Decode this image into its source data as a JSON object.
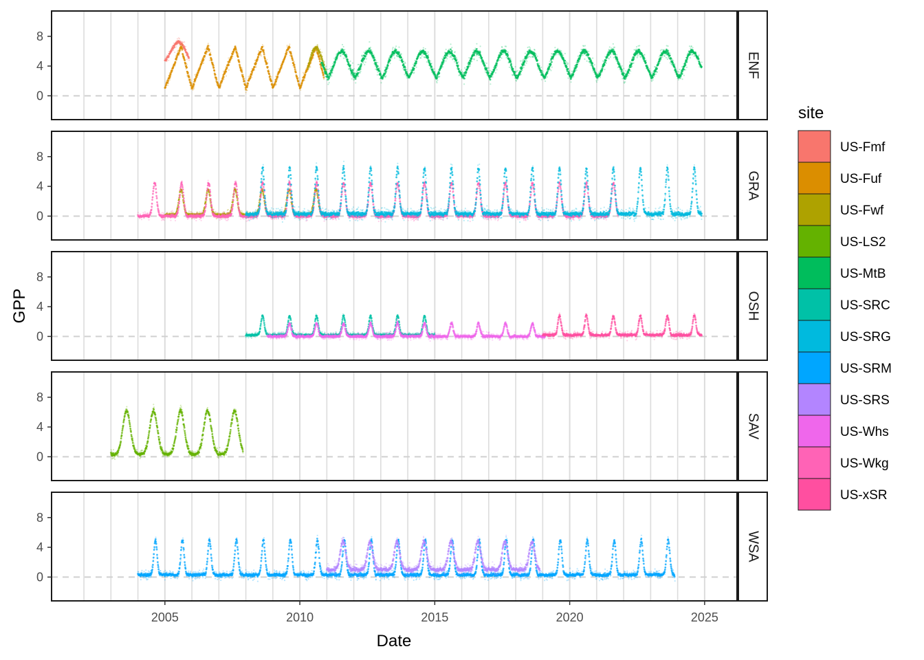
{
  "chart_data": {
    "type": "scatter",
    "title": "",
    "xlabel": "Date",
    "ylabel": "GPP",
    "xlim": [
      2000.8,
      2026.2
    ],
    "ylim": [
      -3.2,
      11.4
    ],
    "x_ticks": [
      2005,
      2010,
      2015,
      2020,
      2025
    ],
    "y_ticks": [
      0,
      4,
      8
    ],
    "grid": "vertical major and minor lines; dashed horizontal reference line at 0",
    "facets": [
      "ENF",
      "GRA",
      "OSH",
      "SAV",
      "WSA"
    ],
    "legend": {
      "title": "site",
      "position": "right",
      "entries": [
        {
          "site": "US-Fmf",
          "color": "#F8766D"
        },
        {
          "site": "US-Fuf",
          "color": "#DB8E00"
        },
        {
          "site": "US-Fwf",
          "color": "#AEA200"
        },
        {
          "site": "US-LS2",
          "color": "#64B200"
        },
        {
          "site": "US-MtB",
          "color": "#00BD5C"
        },
        {
          "site": "US-SRC",
          "color": "#00C1A7"
        },
        {
          "site": "US-SRG",
          "color": "#00BADE"
        },
        {
          "site": "US-SRM",
          "color": "#00A6FF"
        },
        {
          "site": "US-SRS",
          "color": "#B385FF"
        },
        {
          "site": "US-Whs",
          "color": "#EF67EB"
        },
        {
          "site": "US-Wkg",
          "color": "#FF63B6"
        },
        {
          "site": "US-xSR",
          "color": "#FF4FA0"
        }
      ]
    },
    "series": [
      {
        "name": "US-Fmf",
        "facet": "ENF",
        "start": 2005.0,
        "end": 2005.9,
        "base": 4.0,
        "peak": 7.2,
        "peak_phase": 0.5,
        "width": 0.28,
        "noise": 0.8,
        "kind": "peaked"
      },
      {
        "name": "US-Fuf",
        "facet": "ENF",
        "start": 2005.0,
        "end": 2010.9,
        "base": 1.0,
        "peak": 6.6,
        "peak_phase": 0.6,
        "width": 0.28,
        "noise": 0.8,
        "kind": "sawtooth"
      },
      {
        "name": "US-Fwf",
        "facet": "ENF",
        "start": 2010.3,
        "end": 2011.0,
        "base": 1.5,
        "peak": 6.5,
        "peak_phase": 0.6,
        "width": 0.25,
        "noise": 0.8,
        "kind": "peaked"
      },
      {
        "name": "US-MtB",
        "facet": "ENF",
        "start": 2010.8,
        "end": 2024.9,
        "base": 1.5,
        "peak": 6.0,
        "peak_phase": 0.55,
        "width": 0.28,
        "noise": 1.0,
        "kind": "peaked"
      },
      {
        "name": "US-Fwf",
        "facet": "GRA",
        "start": 2005.0,
        "end": 2011.0,
        "base": 0.2,
        "peak": 3.6,
        "peak_phase": 0.6,
        "width": 0.08,
        "noise": 0.5,
        "kind": "peaked"
      },
      {
        "name": "US-Wkg",
        "facet": "GRA",
        "start": 2004.0,
        "end": 2021.8,
        "base": 0.0,
        "peak": 4.5,
        "peak_phase": 0.62,
        "width": 0.07,
        "noise": 0.6,
        "kind": "peaked"
      },
      {
        "name": "US-SRG",
        "facet": "GRA",
        "start": 2008.0,
        "end": 2024.9,
        "base": 0.3,
        "peak": 6.5,
        "peak_phase": 0.62,
        "width": 0.06,
        "noise": 0.9,
        "kind": "peaked"
      },
      {
        "name": "US-SRC",
        "facet": "OSH",
        "start": 2008.0,
        "end": 2015.0,
        "base": 0.2,
        "peak": 2.8,
        "peak_phase": 0.62,
        "width": 0.06,
        "noise": 0.4,
        "kind": "peaked"
      },
      {
        "name": "US-Whs",
        "facet": "OSH",
        "start": 2008.8,
        "end": 2019.1,
        "base": 0.0,
        "peak": 1.8,
        "peak_phase": 0.62,
        "width": 0.06,
        "noise": 0.5,
        "kind": "peaked"
      },
      {
        "name": "US-xSR",
        "facet": "OSH",
        "start": 2019.0,
        "end": 2024.9,
        "base": 0.2,
        "peak": 2.8,
        "peak_phase": 0.62,
        "width": 0.06,
        "noise": 0.6,
        "kind": "peaked"
      },
      {
        "name": "US-LS2",
        "facet": "SAV",
        "start": 2003.0,
        "end": 2007.9,
        "base": 0.3,
        "peak": 6.2,
        "peak_phase": 0.58,
        "width": 0.14,
        "noise": 0.7,
        "kind": "peaked"
      },
      {
        "name": "US-SRM",
        "facet": "WSA",
        "start": 2004.0,
        "end": 2023.9,
        "base": 0.3,
        "peak": 5.0,
        "peak_phase": 0.65,
        "width": 0.06,
        "noise": 0.7,
        "kind": "peaked"
      },
      {
        "name": "US-SRS",
        "facet": "WSA",
        "start": 2011.0,
        "end": 2018.9,
        "base": 1.0,
        "peak": 4.8,
        "peak_phase": 0.6,
        "width": 0.1,
        "noise": 0.9,
        "kind": "peaked"
      }
    ]
  }
}
